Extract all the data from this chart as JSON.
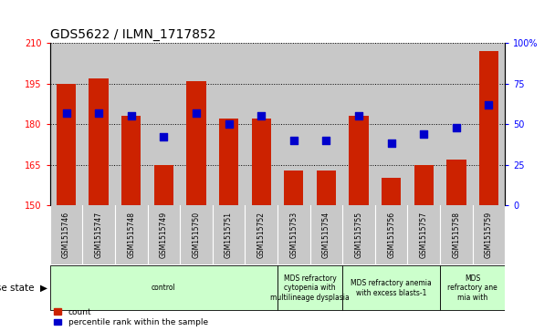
{
  "title": "GDS5622 / ILMN_1717852",
  "samples": [
    "GSM1515746",
    "GSM1515747",
    "GSM1515748",
    "GSM1515749",
    "GSM1515750",
    "GSM1515751",
    "GSM1515752",
    "GSM1515753",
    "GSM1515754",
    "GSM1515755",
    "GSM1515756",
    "GSM1515757",
    "GSM1515758",
    "GSM1515759"
  ],
  "counts": [
    195,
    197,
    183,
    165,
    196,
    182,
    182,
    163,
    163,
    183,
    160,
    165,
    167,
    207
  ],
  "percentile_ranks": [
    57,
    57,
    55,
    42,
    57,
    50,
    55,
    40,
    40,
    55,
    38,
    44,
    48,
    62
  ],
  "ylim_left": [
    150,
    210
  ],
  "ylim_right": [
    0,
    100
  ],
  "yticks_left": [
    150,
    165,
    180,
    195,
    210
  ],
  "yticks_right": [
    0,
    25,
    50,
    75,
    100
  ],
  "bar_color": "#CC2200",
  "dot_color": "#0000CC",
  "col_bg": "#C8C8C8",
  "disease_groups": [
    {
      "label": "control",
      "start": 0,
      "end": 7,
      "color": "#CCFFCC"
    },
    {
      "label": "MDS refractory\ncytopenia with\nmultilineage dysplasia",
      "start": 7,
      "end": 9,
      "color": "#CCFFCC"
    },
    {
      "label": "MDS refractory anemia\nwith excess blasts-1",
      "start": 9,
      "end": 12,
      "color": "#CCFFCC"
    },
    {
      "label": "MDS\nrefractory ane\nmia with",
      "start": 12,
      "end": 14,
      "color": "#CCFFCC"
    }
  ],
  "legend_items": [
    {
      "label": "count",
      "color": "#CC2200"
    },
    {
      "label": "percentile rank within the sample",
      "color": "#0000CC"
    }
  ],
  "title_fontsize": 10,
  "tick_fontsize": 7,
  "dot_size": 28
}
